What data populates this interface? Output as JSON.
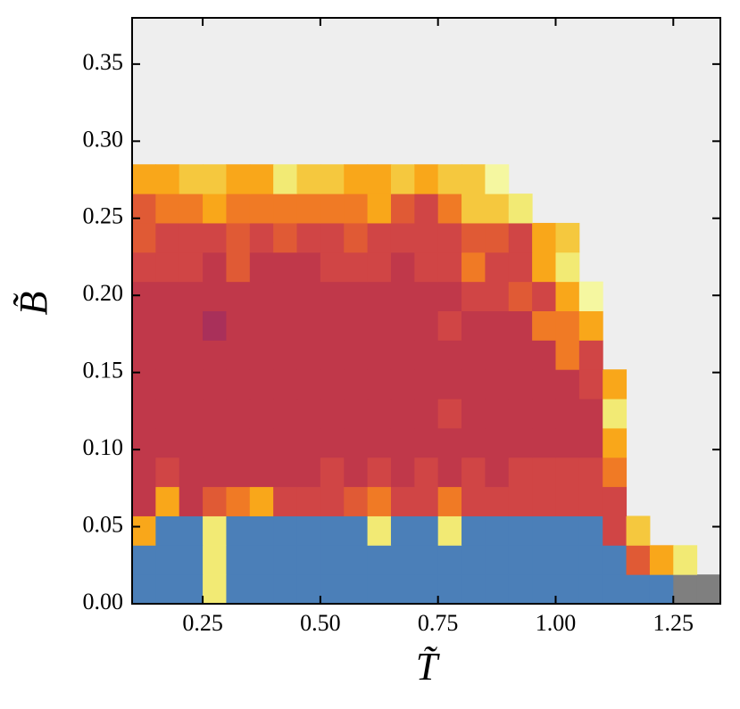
{
  "chart_data": {
    "type": "heatmap",
    "xlabel": "T̃",
    "ylabel": "B̃",
    "x": [
      0.1,
      0.15,
      0.2,
      0.25,
      0.3,
      0.35,
      0.4,
      0.45,
      0.5,
      0.55,
      0.6,
      0.65,
      0.7,
      0.75,
      0.8,
      0.85,
      0.9,
      0.95,
      1.0,
      1.05,
      1.1,
      1.15,
      1.2,
      1.25,
      1.3,
      1.35
    ],
    "y": [
      0,
      0.019,
      0.038,
      0.057,
      0.076,
      0.095,
      0.114,
      0.133,
      0.152,
      0.171,
      0.19,
      0.209,
      0.228,
      0.247,
      0.266,
      0.285
    ],
    "colors": [
      "#4b7fb8",
      "#7f7f7f",
      "#c0384a",
      "#d04545",
      "#e05a35",
      "#f07a25",
      "#f9a71a",
      "#f5c83e",
      "#f2ea74",
      "#f5f7a0",
      "#a9305a"
    ],
    "nan_color": "#eeeeee",
    "z": [
      [
        0,
        0,
        0,
        8,
        0,
        0,
        0,
        0,
        0,
        0,
        0,
        0,
        0,
        0,
        0,
        0,
        0,
        0,
        0,
        0,
        0,
        0,
        0,
        1,
        1
      ],
      [
        0,
        0,
        0,
        8,
        0,
        0,
        0,
        0,
        0,
        0,
        0,
        0,
        0,
        0,
        0,
        0,
        0,
        0,
        0,
        0,
        0,
        4,
        6,
        8,
        null
      ],
      [
        6,
        0,
        0,
        8,
        0,
        0,
        0,
        0,
        0,
        0,
        8,
        0,
        0,
        8,
        0,
        0,
        0,
        0,
        0,
        0,
        3,
        7,
        null,
        null,
        null
      ],
      [
        2,
        6,
        2,
        4,
        5,
        6,
        3,
        3,
        3,
        4,
        5,
        3,
        3,
        5,
        3,
        3,
        3,
        3,
        3,
        3,
        3,
        null,
        null,
        null,
        null
      ],
      [
        2,
        3,
        2,
        2,
        2,
        2,
        2,
        2,
        3,
        2,
        3,
        2,
        3,
        2,
        3,
        2,
        3,
        3,
        3,
        3,
        5,
        null,
        null,
        null,
        null
      ],
      [
        2,
        2,
        2,
        2,
        2,
        2,
        2,
        2,
        2,
        2,
        2,
        2,
        2,
        2,
        2,
        2,
        2,
        2,
        2,
        2,
        6,
        null,
        null,
        null,
        null
      ],
      [
        2,
        2,
        2,
        2,
        2,
        2,
        2,
        2,
        2,
        2,
        2,
        2,
        2,
        3,
        2,
        2,
        2,
        2,
        2,
        2,
        8,
        null,
        null,
        null,
        null
      ],
      [
        2,
        2,
        2,
        2,
        2,
        2,
        2,
        2,
        2,
        2,
        2,
        2,
        2,
        2,
        2,
        2,
        2,
        2,
        2,
        3,
        6,
        null,
        null,
        null,
        null
      ],
      [
        2,
        2,
        2,
        2,
        2,
        2,
        2,
        2,
        2,
        2,
        2,
        2,
        2,
        2,
        2,
        2,
        2,
        2,
        5,
        3,
        null,
        null,
        null,
        null,
        null
      ],
      [
        2,
        2,
        2,
        10,
        2,
        2,
        2,
        2,
        2,
        2,
        2,
        2,
        2,
        3,
        2,
        2,
        2,
        5,
        5,
        6,
        null,
        null,
        null,
        null,
        null
      ],
      [
        2,
        2,
        2,
        2,
        2,
        2,
        2,
        2,
        2,
        2,
        2,
        2,
        2,
        2,
        3,
        3,
        4,
        3,
        6,
        9,
        null,
        null,
        null,
        null,
        null
      ],
      [
        3,
        3,
        3,
        2,
        4,
        2,
        2,
        2,
        3,
        3,
        3,
        2,
        3,
        3,
        5,
        3,
        3,
        6,
        8,
        null,
        null,
        null,
        null,
        null,
        null
      ],
      [
        4,
        3,
        3,
        3,
        4,
        3,
        4,
        3,
        3,
        4,
        3,
        3,
        3,
        3,
        4,
        4,
        3,
        6,
        7,
        null,
        null,
        null,
        null,
        null,
        null
      ],
      [
        4,
        5,
        5,
        6,
        5,
        5,
        5,
        5,
        5,
        5,
        6,
        4,
        3,
        5,
        7,
        7,
        8,
        null,
        null,
        null,
        null,
        null,
        null,
        null,
        null
      ],
      [
        6,
        6,
        7,
        7,
        6,
        6,
        8,
        7,
        7,
        6,
        6,
        7,
        6,
        7,
        7,
        9,
        null,
        null,
        null,
        null,
        null,
        null,
        null,
        null,
        null
      ]
    ],
    "xlim": [
      0.1,
      1.35
    ],
    "ylim": [
      0,
      0.38
    ],
    "xticks": [
      0.25,
      {
        "value": 0.5,
        "label": "0.50"
      },
      0.75,
      {
        "value": 1.0,
        "label": "1.00"
      },
      1.25
    ],
    "yticks": [
      {
        "value": 0,
        "label": "0.00"
      },
      0.05,
      {
        "value": 0.1,
        "label": "0.10"
      },
      0.15,
      {
        "value": 0.2,
        "label": "0.20"
      },
      0.25,
      {
        "value": 0.3,
        "label": "0.30"
      },
      0.35
    ]
  }
}
